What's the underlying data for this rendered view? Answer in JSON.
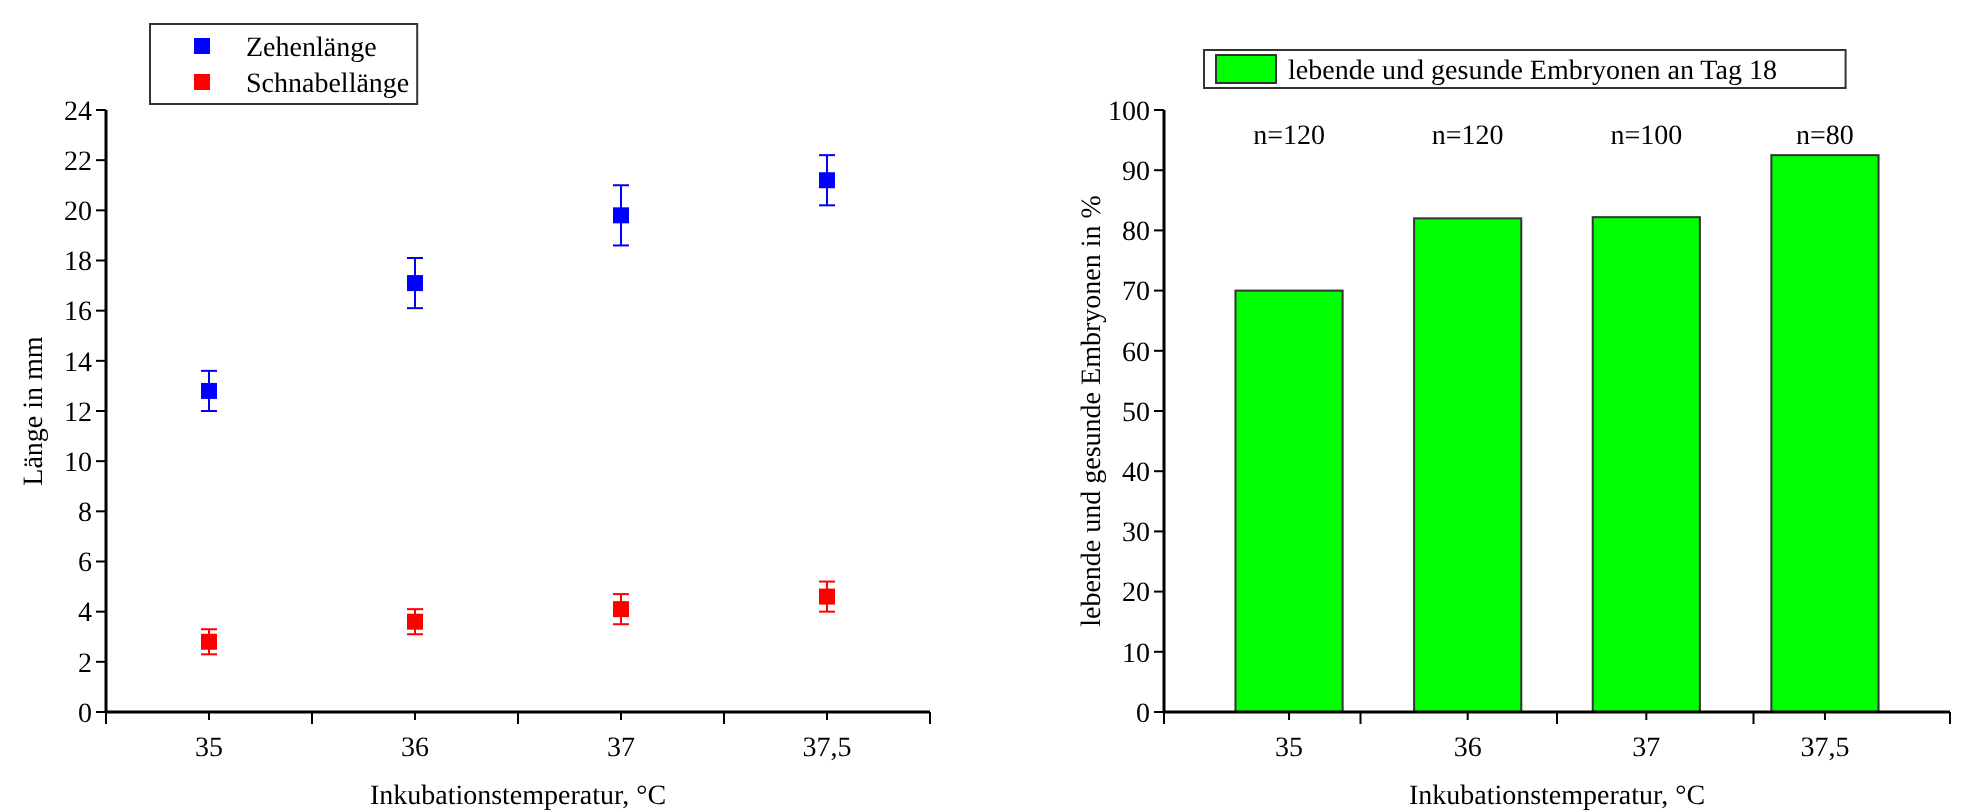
{
  "chart_data": [
    {
      "type": "scatter",
      "xlabel": "Inkubationstemperatur, °C",
      "ylabel": "Länge in mm",
      "categories": [
        "35",
        "36",
        "37",
        "37,5"
      ],
      "ylim": [
        0,
        24
      ],
      "yticks": [
        0,
        2,
        4,
        6,
        8,
        10,
        12,
        14,
        16,
        18,
        20,
        22,
        24
      ],
      "legend": "top left",
      "marker": "square",
      "grid": false,
      "series": [
        {
          "name": "Zehenlänge",
          "color": "#0000ff",
          "values": [
            12.8,
            17.1,
            19.8,
            21.2
          ],
          "errors": [
            0.8,
            1.0,
            1.2,
            1.0
          ]
        },
        {
          "name": "Schnabellänge",
          "color": "#ff0000",
          "values": [
            2.8,
            3.6,
            4.1,
            4.6
          ],
          "errors": [
            0.5,
            0.5,
            0.6,
            0.6
          ]
        }
      ]
    },
    {
      "type": "bar",
      "xlabel": "Inkubationstemperatur, °C",
      "ylabel": "lebende und gesunde Embryonen in %",
      "categories": [
        "35",
        "36",
        "37",
        "37,5"
      ],
      "ylim": [
        0,
        100
      ],
      "yticks": [
        0,
        10,
        20,
        30,
        40,
        50,
        60,
        70,
        80,
        90,
        100
      ],
      "legend": "top",
      "grid": false,
      "series": [
        {
          "name": "lebende und gesunde Embryonen an Tag 18",
          "color": "#00ff00",
          "values": [
            70,
            82,
            82.2,
            92.5
          ]
        }
      ],
      "annotations": [
        "n=120",
        "n=120",
        "n=100",
        "n=80"
      ]
    }
  ]
}
